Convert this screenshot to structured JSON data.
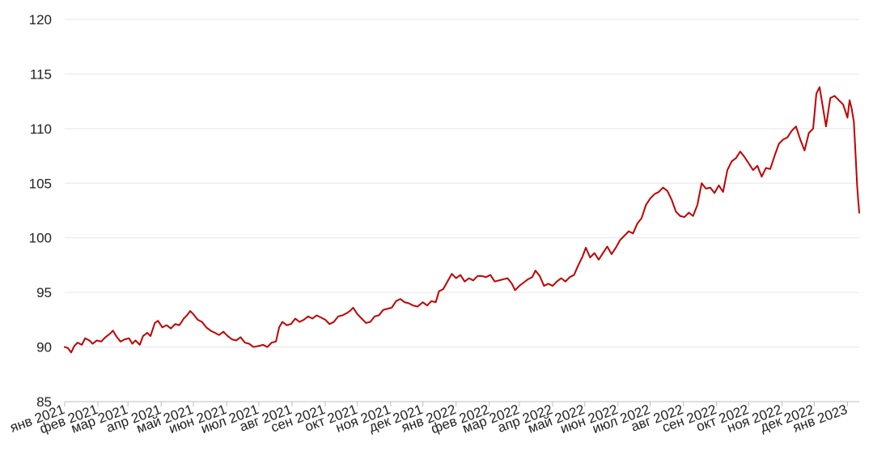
{
  "chart_data": {
    "type": "line",
    "title": "",
    "xlabel": "",
    "ylabel": "",
    "ylim": [
      85,
      120
    ],
    "y_ticks": [
      85,
      90,
      95,
      100,
      105,
      110,
      115,
      120
    ],
    "grid": true,
    "legend": "none",
    "x_tick_labels": [
      "янв 2021",
      "фев 2021",
      "мар 2021",
      "апр 2021",
      "май 2021",
      "июн 2021",
      "июл 2021",
      "авг 2021",
      "сен 2021",
      "окт 2021",
      "ноя 2021",
      "дек 2021",
      "янв 2022",
      "фев 2022",
      "мар 2022",
      "апр 2022",
      "май 2022",
      "июн 2022",
      "июл 2022",
      "авг 2022",
      "сен 2022",
      "окт 2022",
      "ноя 2022",
      "дек 2022",
      "янв 2023"
    ],
    "x_tick_dates": [
      "2021-01-01",
      "2021-02-01",
      "2021-03-01",
      "2021-04-01",
      "2021-05-01",
      "2021-06-01",
      "2021-07-01",
      "2021-08-01",
      "2021-09-01",
      "2021-10-01",
      "2021-11-01",
      "2021-12-01",
      "2022-01-01",
      "2022-02-01",
      "2022-03-01",
      "2022-04-01",
      "2022-05-01",
      "2022-06-01",
      "2022-07-01",
      "2022-08-01",
      "2022-09-01",
      "2022-10-01",
      "2022-11-01",
      "2022-12-01",
      "2023-01-01"
    ],
    "x_range": [
      "2021-01-01",
      "2023-01-12"
    ],
    "colors": {
      "line": "#c00000"
    },
    "series": [
      {
        "points": [
          [
            "2021-01-01",
            90.0
          ],
          [
            "2021-01-04",
            89.9
          ],
          [
            "2021-01-07",
            89.5
          ],
          [
            "2021-01-10",
            90.1
          ],
          [
            "2021-01-13",
            90.4
          ],
          [
            "2021-01-17",
            90.2
          ],
          [
            "2021-01-20",
            90.8
          ],
          [
            "2021-01-24",
            90.6
          ],
          [
            "2021-01-27",
            90.3
          ],
          [
            "2021-01-31",
            90.6
          ],
          [
            "2021-02-04",
            90.5
          ],
          [
            "2021-02-08",
            90.9
          ],
          [
            "2021-02-12",
            91.2
          ],
          [
            "2021-02-15",
            91.5
          ],
          [
            "2021-02-18",
            91.0
          ],
          [
            "2021-02-22",
            90.5
          ],
          [
            "2021-02-26",
            90.7
          ],
          [
            "2021-03-02",
            90.8
          ],
          [
            "2021-03-05",
            90.3
          ],
          [
            "2021-03-08",
            90.6
          ],
          [
            "2021-03-12",
            90.2
          ],
          [
            "2021-03-15",
            91.0
          ],
          [
            "2021-03-19",
            91.3
          ],
          [
            "2021-03-22",
            91.0
          ],
          [
            "2021-03-26",
            92.2
          ],
          [
            "2021-03-29",
            92.4
          ],
          [
            "2021-04-02",
            91.8
          ],
          [
            "2021-04-06",
            92.0
          ],
          [
            "2021-04-10",
            91.7
          ],
          [
            "2021-04-14",
            92.1
          ],
          [
            "2021-04-18",
            92.0
          ],
          [
            "2021-04-22",
            92.6
          ],
          [
            "2021-04-25",
            92.9
          ],
          [
            "2021-04-28",
            93.3
          ],
          [
            "2021-05-01",
            93.0
          ],
          [
            "2021-05-05",
            92.5
          ],
          [
            "2021-05-09",
            92.3
          ],
          [
            "2021-05-13",
            91.8
          ],
          [
            "2021-05-17",
            91.5
          ],
          [
            "2021-05-21",
            91.3
          ],
          [
            "2021-05-25",
            91.1
          ],
          [
            "2021-05-29",
            91.4
          ],
          [
            "2021-06-02",
            91.0
          ],
          [
            "2021-06-06",
            90.7
          ],
          [
            "2021-06-10",
            90.6
          ],
          [
            "2021-06-14",
            90.9
          ],
          [
            "2021-06-18",
            90.4
          ],
          [
            "2021-06-22",
            90.3
          ],
          [
            "2021-06-26",
            90.0
          ],
          [
            "2021-07-01",
            90.1
          ],
          [
            "2021-07-05",
            90.2
          ],
          [
            "2021-07-09",
            90.0
          ],
          [
            "2021-07-13",
            90.4
          ],
          [
            "2021-07-17",
            90.5
          ],
          [
            "2021-07-20",
            91.8
          ],
          [
            "2021-07-23",
            92.3
          ],
          [
            "2021-07-27",
            92.0
          ],
          [
            "2021-07-31",
            92.1
          ],
          [
            "2021-08-04",
            92.6
          ],
          [
            "2021-08-08",
            92.3
          ],
          [
            "2021-08-12",
            92.5
          ],
          [
            "2021-08-16",
            92.8
          ],
          [
            "2021-08-20",
            92.6
          ],
          [
            "2021-08-24",
            92.9
          ],
          [
            "2021-08-28",
            92.7
          ],
          [
            "2021-09-01",
            92.5
          ],
          [
            "2021-09-05",
            92.1
          ],
          [
            "2021-09-09",
            92.3
          ],
          [
            "2021-09-13",
            92.8
          ],
          [
            "2021-09-17",
            92.9
          ],
          [
            "2021-09-21",
            93.1
          ],
          [
            "2021-09-24",
            93.3
          ],
          [
            "2021-09-27",
            93.6
          ],
          [
            "2021-10-01",
            93.0
          ],
          [
            "2021-10-05",
            92.6
          ],
          [
            "2021-10-09",
            92.2
          ],
          [
            "2021-10-13",
            92.3
          ],
          [
            "2021-10-17",
            92.8
          ],
          [
            "2021-10-21",
            92.9
          ],
          [
            "2021-10-25",
            93.4
          ],
          [
            "2021-10-29",
            93.5
          ],
          [
            "2021-11-02",
            93.6
          ],
          [
            "2021-11-06",
            94.2
          ],
          [
            "2021-11-10",
            94.4
          ],
          [
            "2021-11-14",
            94.1
          ],
          [
            "2021-11-18",
            94.0
          ],
          [
            "2021-11-22",
            93.8
          ],
          [
            "2021-11-26",
            93.7
          ],
          [
            "2021-12-01",
            94.1
          ],
          [
            "2021-12-05",
            93.8
          ],
          [
            "2021-12-09",
            94.2
          ],
          [
            "2021-12-13",
            94.1
          ],
          [
            "2021-12-16",
            95.1
          ],
          [
            "2021-12-20",
            95.3
          ],
          [
            "2021-12-24",
            96.0
          ],
          [
            "2021-12-28",
            96.7
          ],
          [
            "2022-01-01",
            96.3
          ],
          [
            "2022-01-05",
            96.6
          ],
          [
            "2022-01-09",
            96.0
          ],
          [
            "2022-01-13",
            96.3
          ],
          [
            "2022-01-17",
            96.1
          ],
          [
            "2022-01-21",
            96.5
          ],
          [
            "2022-01-25",
            96.5
          ],
          [
            "2022-01-29",
            96.4
          ],
          [
            "2022-02-02",
            96.6
          ],
          [
            "2022-02-06",
            96.0
          ],
          [
            "2022-02-10",
            96.1
          ],
          [
            "2022-02-14",
            96.2
          ],
          [
            "2022-02-18",
            96.3
          ],
          [
            "2022-02-22",
            95.8
          ],
          [
            "2022-02-25",
            95.2
          ],
          [
            "2022-03-01",
            95.6
          ],
          [
            "2022-03-05",
            95.9
          ],
          [
            "2022-03-09",
            96.2
          ],
          [
            "2022-03-13",
            96.4
          ],
          [
            "2022-03-16",
            97.0
          ],
          [
            "2022-03-20",
            96.5
          ],
          [
            "2022-03-24",
            95.6
          ],
          [
            "2022-03-28",
            95.8
          ],
          [
            "2022-04-01",
            95.6
          ],
          [
            "2022-04-05",
            96.0
          ],
          [
            "2022-04-09",
            96.3
          ],
          [
            "2022-04-13",
            96.0
          ],
          [
            "2022-04-17",
            96.4
          ],
          [
            "2022-04-21",
            96.6
          ],
          [
            "2022-04-25",
            97.5
          ],
          [
            "2022-04-29",
            98.3
          ],
          [
            "2022-05-02",
            99.1
          ],
          [
            "2022-05-06",
            98.2
          ],
          [
            "2022-05-10",
            98.6
          ],
          [
            "2022-05-14",
            98.0
          ],
          [
            "2022-05-18",
            98.6
          ],
          [
            "2022-05-22",
            99.2
          ],
          [
            "2022-05-26",
            98.5
          ],
          [
            "2022-05-30",
            99.1
          ],
          [
            "2022-06-03",
            99.8
          ],
          [
            "2022-06-07",
            100.2
          ],
          [
            "2022-06-11",
            100.6
          ],
          [
            "2022-06-15",
            100.4
          ],
          [
            "2022-06-19",
            101.3
          ],
          [
            "2022-06-23",
            101.8
          ],
          [
            "2022-06-27",
            103.0
          ],
          [
            "2022-07-01",
            103.6
          ],
          [
            "2022-07-05",
            104.0
          ],
          [
            "2022-07-09",
            104.2
          ],
          [
            "2022-07-13",
            104.6
          ],
          [
            "2022-07-17",
            104.3
          ],
          [
            "2022-07-21",
            103.5
          ],
          [
            "2022-07-25",
            102.4
          ],
          [
            "2022-07-29",
            102.0
          ],
          [
            "2022-08-02",
            101.9
          ],
          [
            "2022-08-06",
            102.3
          ],
          [
            "2022-08-10",
            102.0
          ],
          [
            "2022-08-14",
            103.0
          ],
          [
            "2022-08-18",
            105.0
          ],
          [
            "2022-08-22",
            104.5
          ],
          [
            "2022-08-26",
            104.6
          ],
          [
            "2022-08-30",
            104.1
          ],
          [
            "2022-09-03",
            104.8
          ],
          [
            "2022-09-07",
            104.2
          ],
          [
            "2022-09-11",
            106.2
          ],
          [
            "2022-09-15",
            107.0
          ],
          [
            "2022-09-19",
            107.3
          ],
          [
            "2022-09-23",
            107.9
          ],
          [
            "2022-09-27",
            107.4
          ],
          [
            "2022-10-01",
            106.8
          ],
          [
            "2022-10-05",
            106.2
          ],
          [
            "2022-10-09",
            106.6
          ],
          [
            "2022-10-13",
            105.6
          ],
          [
            "2022-10-17",
            106.4
          ],
          [
            "2022-10-21",
            106.3
          ],
          [
            "2022-10-25",
            107.5
          ],
          [
            "2022-10-29",
            108.6
          ],
          [
            "2022-11-02",
            109.0
          ],
          [
            "2022-11-06",
            109.2
          ],
          [
            "2022-11-10",
            109.8
          ],
          [
            "2022-11-14",
            110.2
          ],
          [
            "2022-11-18",
            109.0
          ],
          [
            "2022-11-22",
            108.0
          ],
          [
            "2022-11-26",
            109.6
          ],
          [
            "2022-11-30",
            110.0
          ],
          [
            "2022-12-03",
            113.2
          ],
          [
            "2022-12-06",
            113.8
          ],
          [
            "2022-12-09",
            112.0
          ],
          [
            "2022-12-12",
            110.2
          ],
          [
            "2022-12-16",
            112.8
          ],
          [
            "2022-12-20",
            113.0
          ],
          [
            "2022-12-24",
            112.6
          ],
          [
            "2022-12-28",
            112.2
          ],
          [
            "2023-01-01",
            111.0
          ],
          [
            "2023-01-03",
            112.6
          ],
          [
            "2023-01-05",
            111.8
          ],
          [
            "2023-01-07",
            110.6
          ],
          [
            "2023-01-09",
            106.8
          ],
          [
            "2023-01-10",
            104.8
          ],
          [
            "2023-01-11",
            103.5
          ],
          [
            "2023-01-12",
            102.3
          ]
        ]
      }
    ]
  }
}
